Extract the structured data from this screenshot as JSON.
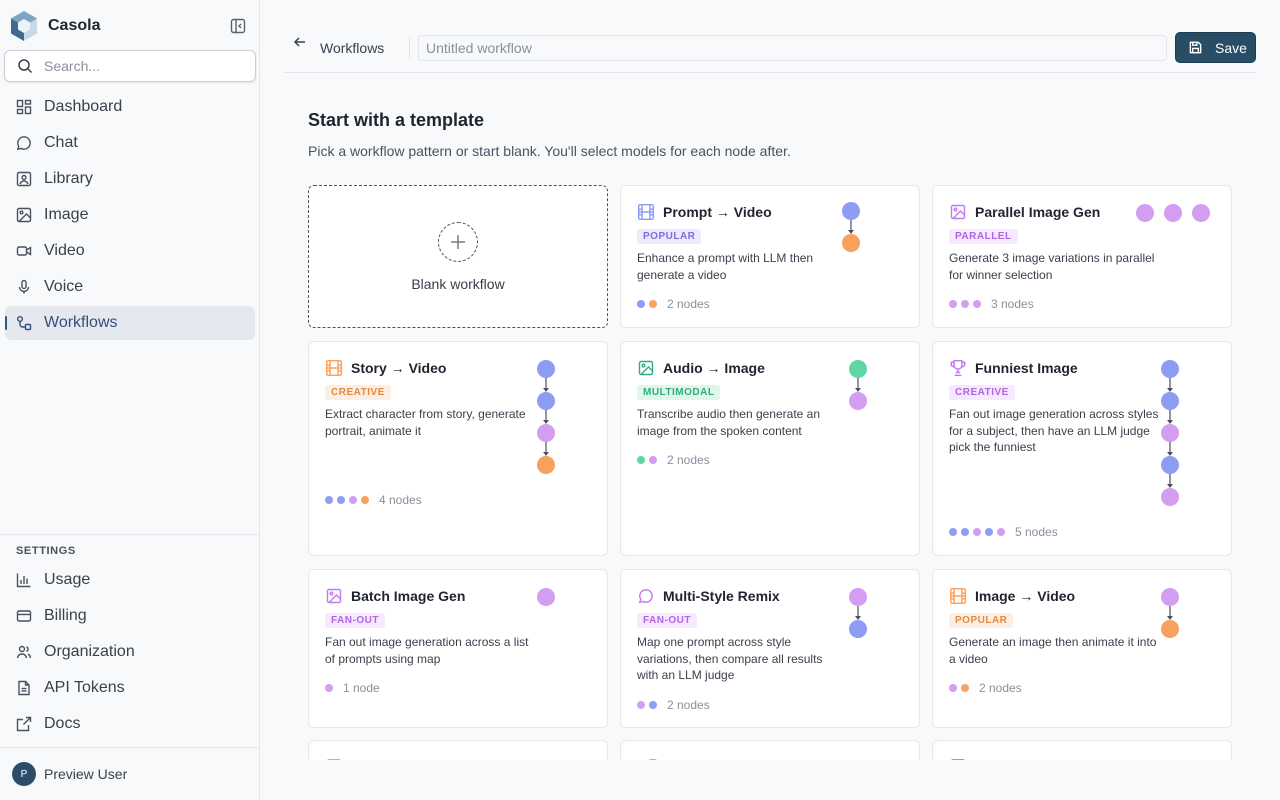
{
  "app": {
    "name": "Casola"
  },
  "search": {
    "placeholder": "Search..."
  },
  "nav": {
    "main": [
      {
        "label": "Dashboard",
        "icon": "dashboard-icon"
      },
      {
        "label": "Chat",
        "icon": "chat-icon"
      },
      {
        "label": "Library",
        "icon": "library-icon"
      },
      {
        "label": "Image",
        "icon": "image-icon"
      },
      {
        "label": "Video",
        "icon": "video-icon"
      },
      {
        "label": "Voice",
        "icon": "mic-icon"
      },
      {
        "label": "Workflows",
        "icon": "workflow-icon",
        "active": true
      }
    ],
    "settings_label": "SETTINGS",
    "settings": [
      {
        "label": "Usage",
        "icon": "chart-icon"
      },
      {
        "label": "Billing",
        "icon": "card-icon"
      },
      {
        "label": "Organization",
        "icon": "users-icon"
      },
      {
        "label": "API Tokens",
        "icon": "token-icon"
      },
      {
        "label": "Docs",
        "icon": "external-link-icon"
      }
    ]
  },
  "user": {
    "initial": "P",
    "name": "Preview User"
  },
  "topbar": {
    "breadcrumb": "Workflows",
    "title_placeholder": "Untitled workflow",
    "save_label": "Save"
  },
  "page": {
    "title": "Start with a template",
    "subtitle": "Pick a workflow pattern or start blank. You'll select models for each node after.",
    "blank_label": "Blank workflow"
  },
  "colors": {
    "blue": "#8f9cf3",
    "orange": "#f8a05d",
    "purple": "#d49ef0",
    "green": "#5fd6a3",
    "accent": "#294c67"
  },
  "templates": [
    {
      "title": "Prompt → Video",
      "icon": "film-icon",
      "badge": "POPULAR",
      "badge_class": "b-popular",
      "desc": "Enhance a prompt with LLM then generate a video",
      "nodes": [
        "blue",
        "orange"
      ],
      "layout": "vertical",
      "count": "2 nodes"
    },
    {
      "title": "Parallel Image Gen",
      "icon": "image-icon",
      "badge": "PARALLEL",
      "badge_class": "b-parallel",
      "desc": "Generate 3 image variations in parallel for winner selection",
      "nodes": [
        "purple",
        "purple",
        "purple"
      ],
      "layout": "horizontal",
      "count": "3 nodes"
    },
    {
      "title": "Story → Video",
      "icon": "film-icon",
      "badge": "CREATIVE",
      "badge_class": "b-creative",
      "desc": "Extract character from story, generate portrait, animate it",
      "nodes": [
        "blue",
        "blue",
        "purple",
        "orange"
      ],
      "layout": "vertical",
      "count": "4 nodes"
    },
    {
      "title": "Audio → Image",
      "icon": "image-icon",
      "badge": "MULTIMODAL",
      "badge_class": "b-multimodal",
      "desc": "Transcribe audio then generate an image from the spoken content",
      "nodes": [
        "green",
        "purple"
      ],
      "layout": "vertical",
      "count": "2 nodes"
    },
    {
      "title": "Funniest Image",
      "icon": "trophy-icon",
      "badge": "CREATIVE",
      "badge_class": "b-fanout",
      "desc": "Fan out image generation across styles for a subject, then have an LLM judge pick the funniest",
      "nodes": [
        "blue",
        "blue",
        "purple",
        "blue",
        "purple"
      ],
      "layout": "vertical",
      "count": "5 nodes"
    },
    {
      "title": "Batch Image Gen",
      "icon": "image-icon",
      "badge": "FAN-OUT",
      "badge_class": "b-fanout",
      "desc": "Fan out image generation across a list of prompts using map",
      "nodes": [
        "purple"
      ],
      "layout": "vertical",
      "count": "1 node"
    },
    {
      "title": "Multi-Style Remix",
      "icon": "chat-icon",
      "badge": "FAN-OUT",
      "badge_class": "b-fanout",
      "desc": "Map one prompt across style variations, then compare all results with an LLM judge",
      "nodes": [
        "purple",
        "blue"
      ],
      "layout": "vertical",
      "count": "2 nodes"
    },
    {
      "title": "Image → Video",
      "icon": "film-icon",
      "badge": "POPULAR",
      "badge_class": "b-creative",
      "desc": "Generate an image then animate it into a video",
      "nodes": [
        "purple",
        "orange"
      ],
      "layout": "vertical",
      "count": "2 nodes"
    }
  ]
}
